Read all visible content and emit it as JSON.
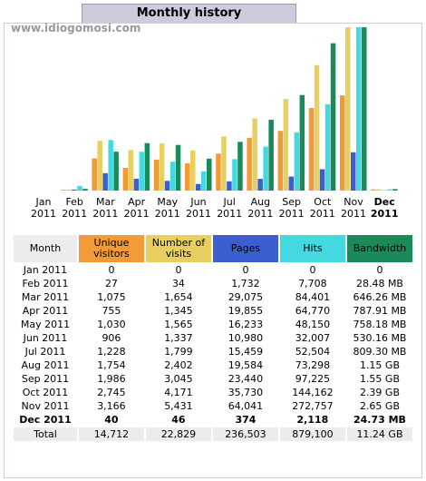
{
  "title": "Monthly history",
  "watermark": "www.idiogomosi.com",
  "chart_data": {
    "type": "bar",
    "categories": [
      "Jan 2011",
      "Feb 2011",
      "Mar 2011",
      "Apr 2011",
      "May 2011",
      "Jun 2011",
      "Jul 2011",
      "Aug 2011",
      "Sep 2011",
      "Oct 2011",
      "Nov 2011",
      "Dec 2011"
    ],
    "series": [
      {
        "name": "Unique visitors",
        "color": "#f39a38",
        "values": [
          0,
          27,
          1075,
          755,
          1030,
          906,
          1228,
          1754,
          1986,
          2745,
          3166,
          40
        ]
      },
      {
        "name": "Number of visits",
        "color": "#e8d060",
        "values": [
          0,
          34,
          1654,
          1345,
          1565,
          1337,
          1799,
          2402,
          3045,
          4171,
          5431,
          46
        ]
      },
      {
        "name": "Pages",
        "color": "#3c5fd0",
        "values": [
          0,
          1732,
          29075,
          19855,
          16233,
          10980,
          15459,
          19584,
          23440,
          35730,
          64041,
          374
        ]
      },
      {
        "name": "Hits",
        "color": "#44d8e0",
        "values": [
          0,
          7708,
          84401,
          64770,
          48150,
          32007,
          52504,
          73298,
          97225,
          144162,
          272757,
          2118
        ]
      },
      {
        "name": "Bandwidth",
        "color": "#1a8a5a",
        "values": [
          0,
          28.48,
          646.26,
          787.91,
          758.18,
          530.16,
          809.3,
          1177.6,
          1587.2,
          2447.36,
          2713.6,
          24.73
        ]
      }
    ]
  },
  "table": {
    "header": "Month",
    "rows": [
      [
        "0",
        "0",
        "0",
        "0",
        "0"
      ],
      [
        "27",
        "34",
        "1,732",
        "7,708",
        "28.48 MB"
      ],
      [
        "1,075",
        "1,654",
        "29,075",
        "84,401",
        "646.26 MB"
      ],
      [
        "755",
        "1,345",
        "19,855",
        "64,770",
        "787.91 MB"
      ],
      [
        "1,030",
        "1,565",
        "16,233",
        "48,150",
        "758.18 MB"
      ],
      [
        "906",
        "1,337",
        "10,980",
        "32,007",
        "530.16 MB"
      ],
      [
        "1,228",
        "1,799",
        "15,459",
        "52,504",
        "809.30 MB"
      ],
      [
        "1,754",
        "2,402",
        "19,584",
        "73,298",
        "1.15 GB"
      ],
      [
        "1,986",
        "3,045",
        "23,440",
        "97,225",
        "1.55 GB"
      ],
      [
        "2,745",
        "4,171",
        "35,730",
        "144,162",
        "2.39 GB"
      ],
      [
        "3,166",
        "5,431",
        "64,041",
        "272,757",
        "2.65 GB"
      ],
      [
        "40",
        "46",
        "374",
        "2,118",
        "24.73 MB"
      ]
    ],
    "total": {
      "label": "Total",
      "values": [
        "14,712",
        "22,829",
        "236,503",
        "879,100",
        "11.24 GB"
      ]
    }
  }
}
